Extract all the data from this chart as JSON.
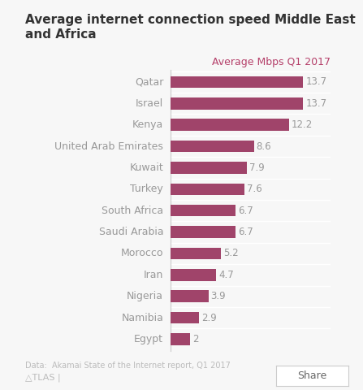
{
  "title": "Average internet connection speed Middle East\nand Africa",
  "subtitle": "Average Mbps Q1 2017",
  "countries": [
    "Qatar",
    "Israel",
    "Kenya",
    "United Arab Emirates",
    "Kuwait",
    "Turkey",
    "South Africa",
    "Saudi Arabia",
    "Morocco",
    "Iran",
    "Nigeria",
    "Namibia",
    "Egypt"
  ],
  "values": [
    13.7,
    13.7,
    12.2,
    8.6,
    7.9,
    7.6,
    6.7,
    6.7,
    5.2,
    4.7,
    3.9,
    2.9,
    2
  ],
  "bar_color": "#a0446a",
  "title_color": "#333333",
  "subtitle_color": "#b5406a",
  "label_color": "#999999",
  "value_color": "#999999",
  "footer_text": "Data:  Akamai State of the Internet report, Q1 2017",
  "atlas_text": "△TLAS |",
  "background_color": "#f7f7f7",
  "xlim": [
    0,
    16.5
  ],
  "bar_height": 0.55
}
